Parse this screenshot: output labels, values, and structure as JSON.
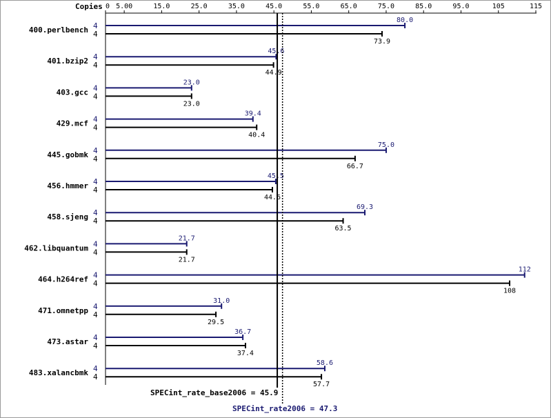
{
  "chart_data": {
    "type": "bar",
    "orientation": "horizontal",
    "axis_header": "Copies",
    "ticks": [
      "0",
      "5.00",
      "15.0",
      "25.0",
      "35.0",
      "45.0",
      "55.0",
      "65.0",
      "75.0",
      "85.0",
      "95.0",
      "105",
      "115"
    ],
    "tick_values": [
      0,
      5,
      15,
      25,
      35,
      45,
      55,
      65,
      75,
      85,
      95,
      105,
      115
    ],
    "xlim": [
      0,
      115
    ],
    "categories": [
      "400.perlbench",
      "401.bzip2",
      "403.gcc",
      "429.mcf",
      "445.gobmk",
      "456.hmmer",
      "458.sjeng",
      "462.libquantum",
      "464.h264ref",
      "471.omnetpp",
      "473.astar",
      "483.xalancbmk"
    ],
    "series": [
      {
        "kind": "peak",
        "color": "#191970",
        "copies": [
          "4",
          "4",
          "4",
          "4",
          "4",
          "4",
          "4",
          "4",
          "4",
          "4",
          "4",
          "4"
        ],
        "values": [
          80.0,
          45.6,
          23.0,
          39.4,
          75.0,
          45.5,
          69.3,
          21.7,
          112,
          31.0,
          36.7,
          58.6
        ],
        "labels": [
          "80.0",
          "45.6",
          "23.0",
          "39.4",
          "75.0",
          "45.5",
          "69.3",
          "21.7",
          "112",
          "31.0",
          "36.7",
          "58.6"
        ]
      },
      {
        "kind": "base",
        "color": "#000000",
        "copies": [
          "4",
          "4",
          "4",
          "4",
          "4",
          "4",
          "4",
          "4",
          "4",
          "4",
          "4",
          "4"
        ],
        "values": [
          73.9,
          44.9,
          23.0,
          40.4,
          66.7,
          44.6,
          63.5,
          21.7,
          108,
          29.5,
          37.4,
          57.7
        ],
        "labels": [
          "73.9",
          "44.9",
          "23.0",
          "40.4",
          "66.7",
          "44.6",
          "63.5",
          "21.7",
          "108",
          "29.5",
          "37.4",
          "57.7"
        ]
      }
    ],
    "summary": {
      "base_text": "SPECint_rate_base2006 = 45.9",
      "base_value": 45.9,
      "peak_text": "SPECint_rate2006 = 47.3",
      "peak_value": 47.3
    },
    "colors": {
      "peak": "#191970",
      "base": "#000000",
      "axis": "#000000",
      "frame": "#999999"
    }
  }
}
